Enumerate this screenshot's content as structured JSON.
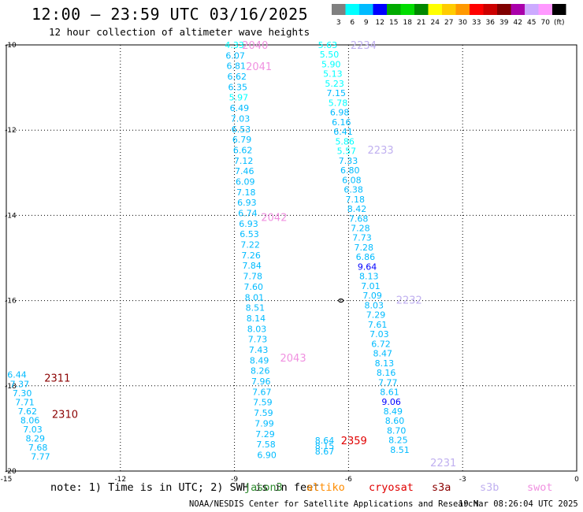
{
  "title": "12:00 – 23:59 UTC 03/16/2025",
  "subtitle": "12 hour collection of altimeter wave heights",
  "note": "note: 1) Time is in UTC; 2) SWH is in feet",
  "footer": "NOAA/NESDIS Center for Satellite Applications and Research",
  "footer_time": "19 Mar 08:26:04 UTC 2025",
  "satellites": [
    {
      "label": "jason3",
      "color": "#2e8b2e"
    },
    {
      "label": "altiko",
      "color": "#ff8c00"
    },
    {
      "label": "cryosat",
      "color": "#e00000"
    },
    {
      "label": "s3a",
      "color": "#8b0000"
    },
    {
      "label": "s3b",
      "color": "#c0b0f0"
    },
    {
      "label": "swot",
      "color": "#f090e0"
    }
  ],
  "colorbar": {
    "colors": [
      "#808080",
      "#00ffff",
      "#00bbff",
      "#0000ff",
      "#00aa00",
      "#00dd00",
      "#008800",
      "#ffff00",
      "#ffcc00",
      "#ff9900",
      "#ff0000",
      "#cc0000",
      "#800000",
      "#aa00aa",
      "#ccaaff",
      "#ff99ff",
      "#000000"
    ],
    "labels": [
      "3",
      "6",
      "9",
      "12",
      "15",
      "18",
      "21",
      "24",
      "27",
      "30",
      "33",
      "36",
      "39",
      "42",
      "45",
      "70",
      "(ft)"
    ]
  },
  "chart_data": {
    "type": "scatter",
    "title": "12:00 – 23:59 UTC 03/16/2025",
    "xlabel": "",
    "ylabel": "",
    "xlim": [
      -15,
      0
    ],
    "ylim": [
      -20,
      -10
    ],
    "x_ticks": [
      "-15",
      "-12",
      "-9",
      "-6",
      "-3",
      "0"
    ],
    "y_ticks": [
      "-10",
      "-12",
      "-14",
      "-16",
      "-18",
      "-20"
    ],
    "grid": true,
    "value_unit": "ft",
    "tracks": [
      {
        "lon_top": -9.0,
        "lon_bottom": -8.15,
        "lat_top": -10.0,
        "lat_bottom": -19.62,
        "values": [
          "4.33",
          "6.07",
          "6.81",
          "6.62",
          "6.35",
          "5.97",
          "6.49",
          "7.03",
          "6.53",
          "6.79",
          "6.62",
          "7.12",
          "7.46",
          "6.09",
          "7.18",
          "6.93",
          "6.74",
          "6.93",
          "6.53",
          "7.22",
          "7.26",
          "7.84",
          "7.78",
          "7.60",
          "8.01",
          "8.51",
          "8.14",
          "8.03",
          "7.73",
          "7.43",
          "8.49",
          "8.26",
          "7.96",
          "7.67",
          "7.59",
          "7.59",
          "7.99",
          "7.29",
          "7.58",
          "6.90"
        ]
      },
      {
        "lon_top": -6.55,
        "lon_bottom": -4.65,
        "lat_top": -10.0,
        "lat_bottom": -19.5,
        "values": [
          "5.63",
          "5.50",
          "5.90",
          "5.13",
          "5.23",
          "7.15",
          "5.78",
          "6.98",
          "6.16",
          "6.41",
          "5.86",
          "5.57",
          "7.33",
          "6.80",
          "6.08",
          "6.38",
          "7.18",
          "8.42",
          "7.68",
          "7.28",
          "7.73",
          "7.28",
          "6.86",
          "9.64",
          "8.13",
          "7.01",
          "7.09",
          "8.03",
          "7.29",
          "7.61",
          "7.03",
          "6.72",
          "8.47",
          "8.13",
          "8.16",
          "7.77",
          "8.61",
          "9.06",
          "8.49",
          "8.60",
          "8.70",
          "8.25",
          "8.51"
        ]
      },
      {
        "lon_top": -14.72,
        "lon_bottom": -14.1,
        "lat_top": -17.74,
        "lat_bottom": -19.66,
        "values": [
          "6.44",
          "7.37",
          "7.30",
          "7.71",
          "7.62",
          "8.06",
          "7.03",
          "8.29",
          "7.68",
          "7.77"
        ]
      },
      {
        "lon_top": -6.63,
        "lon_bottom": -6.63,
        "lat_top": -19.28,
        "lat_bottom": -19.54,
        "values": [
          "8.64",
          "8.15",
          "8.67"
        ]
      }
    ],
    "time_labels": [
      {
        "text": "2040",
        "lon": -8.8,
        "lat": -10.0,
        "sat": "swot"
      },
      {
        "text": "2041",
        "lon": -8.7,
        "lat": -10.5,
        "sat": "swot"
      },
      {
        "text": "2042",
        "lon": -8.3,
        "lat": -14.04,
        "sat": "swot"
      },
      {
        "text": "2043",
        "lon": -7.8,
        "lat": -17.34,
        "sat": "swot"
      },
      {
        "text": "2234",
        "lon": -5.95,
        "lat": -10.0,
        "sat": "s3b"
      },
      {
        "text": "2233",
        "lon": -5.5,
        "lat": -12.46,
        "sat": "s3b"
      },
      {
        "text": "2232",
        "lon": -4.75,
        "lat": -15.98,
        "sat": "s3b"
      },
      {
        "text": "2231",
        "lon": -3.85,
        "lat": -19.8,
        "sat": "s3b"
      },
      {
        "text": "2311",
        "lon": -14.0,
        "lat": -17.81,
        "sat": "s3a"
      },
      {
        "text": "2310",
        "lon": -13.8,
        "lat": -18.66,
        "sat": "s3a"
      },
      {
        "text": "2359",
        "lon": -6.2,
        "lat": -19.28,
        "sat": "cryosat"
      }
    ]
  }
}
